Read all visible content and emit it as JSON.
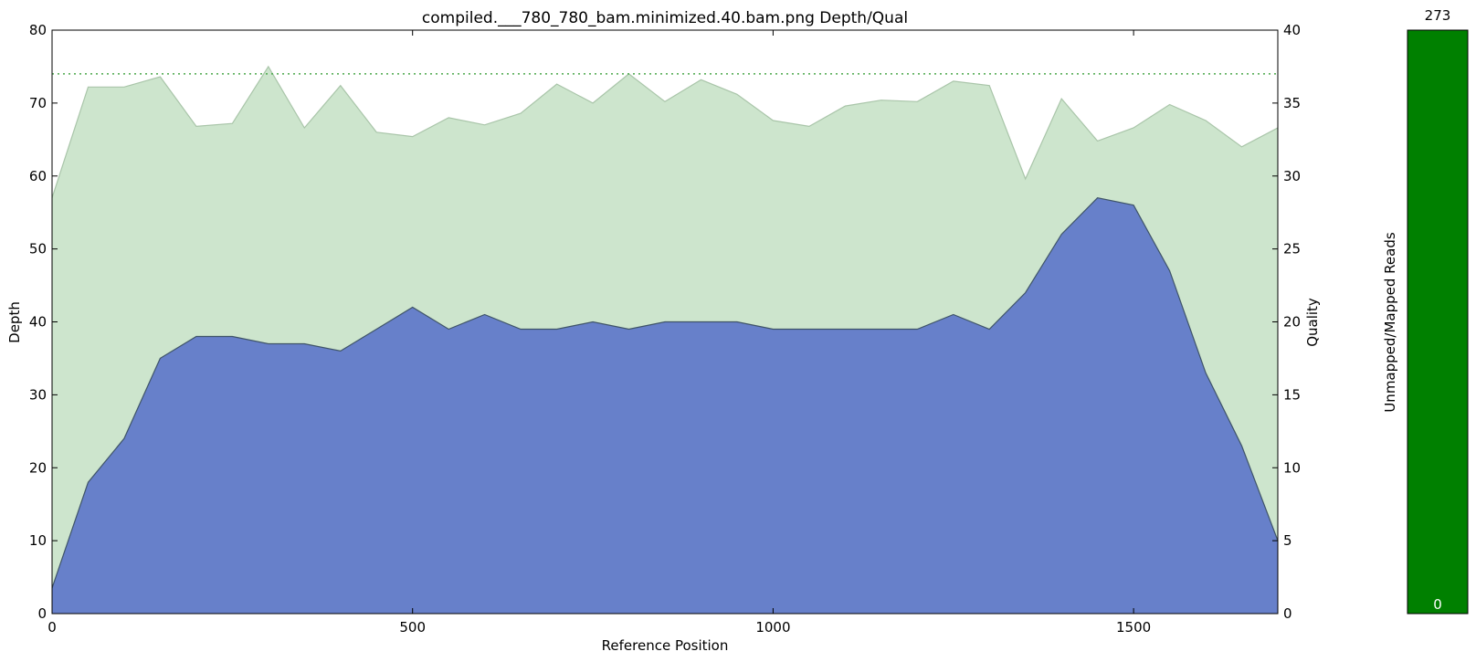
{
  "chart_data": [
    {
      "type": "area",
      "title": "compiled.___780_780_bam.minimized.40.bam.png Depth/Qual",
      "xlabel": "Reference Position",
      "ylabel": "Depth",
      "y2label": "Quality",
      "xlim": [
        0,
        1700
      ],
      "ylim": [
        0,
        80
      ],
      "y2lim": [
        0,
        40
      ],
      "xticks": [
        0,
        500,
        1000,
        1500
      ],
      "yticks": [
        0,
        10,
        20,
        30,
        40,
        50,
        60,
        70,
        80
      ],
      "y2ticks": [
        0,
        5,
        10,
        15,
        20,
        25,
        30,
        35,
        40
      ],
      "reference_line_quality": 37,
      "colors": {
        "depth_fill": "#6780ca",
        "depth_line": "#3f5468",
        "quality_fill": "#cde5cd",
        "quality_line": "#a9c5a9",
        "reference_line": "#4aa84a"
      },
      "x": [
        0,
        50,
        100,
        150,
        200,
        250,
        300,
        350,
        400,
        450,
        500,
        550,
        600,
        650,
        700,
        750,
        800,
        850,
        900,
        950,
        1000,
        1050,
        1100,
        1150,
        1200,
        1250,
        1300,
        1350,
        1400,
        1450,
        1500,
        1550,
        1600,
        1650,
        1700
      ],
      "series": [
        {
          "name": "Depth",
          "axis": "left",
          "values": [
            3.5,
            18,
            24,
            35,
            38,
            38,
            37,
            37,
            36,
            39,
            42,
            39,
            41,
            39,
            39,
            40,
            39,
            40,
            40,
            40,
            39,
            39,
            39,
            39,
            39,
            41,
            39,
            44,
            52,
            57,
            56,
            47,
            33,
            23,
            10
          ]
        },
        {
          "name": "Quality",
          "axis": "right",
          "values": [
            28.5,
            36.1,
            36.1,
            36.8,
            33.4,
            33.6,
            37.5,
            33.3,
            36.2,
            33.0,
            32.7,
            34.0,
            33.5,
            34.3,
            36.3,
            35.0,
            37.0,
            35.1,
            36.6,
            35.6,
            33.8,
            33.4,
            34.8,
            35.2,
            35.1,
            36.5,
            36.2,
            29.8,
            35.3,
            32.4,
            33.3,
            34.9,
            33.8,
            32.0,
            33.3
          ]
        }
      ]
    },
    {
      "type": "bar",
      "ylabel": "Unmapped/Mapped Reads",
      "top_label": "273",
      "bottom_label": "0",
      "values": {
        "mapped": 273,
        "unmapped": 0
      },
      "colors": {
        "mapped": "#008000"
      }
    }
  ]
}
